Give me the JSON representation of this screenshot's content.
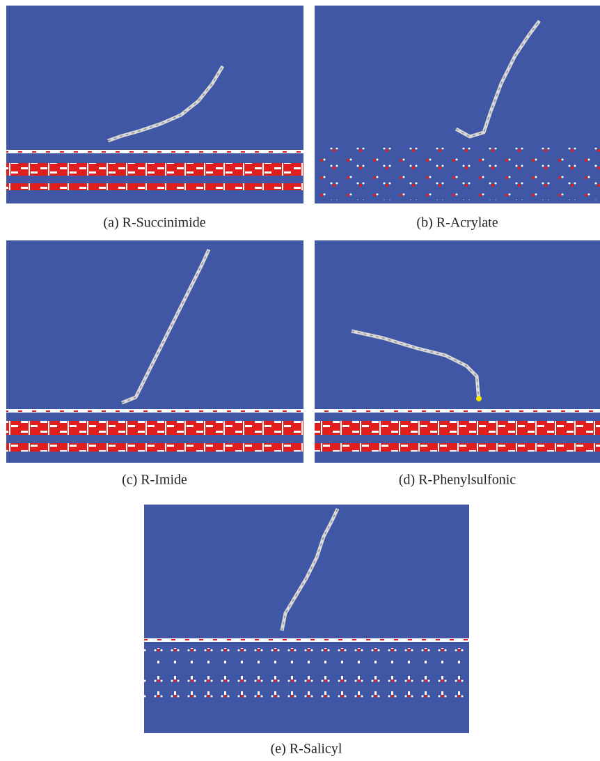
{
  "figure": {
    "panels": [
      {
        "caption": "(a) R-Succinimide"
      },
      {
        "caption": "(b) R-Acrylate"
      },
      {
        "caption": "(c) R-Imide"
      },
      {
        "caption": "(d) R-Phenylsulfonic"
      },
      {
        "caption": "(e) R-Salicyl"
      }
    ]
  }
}
